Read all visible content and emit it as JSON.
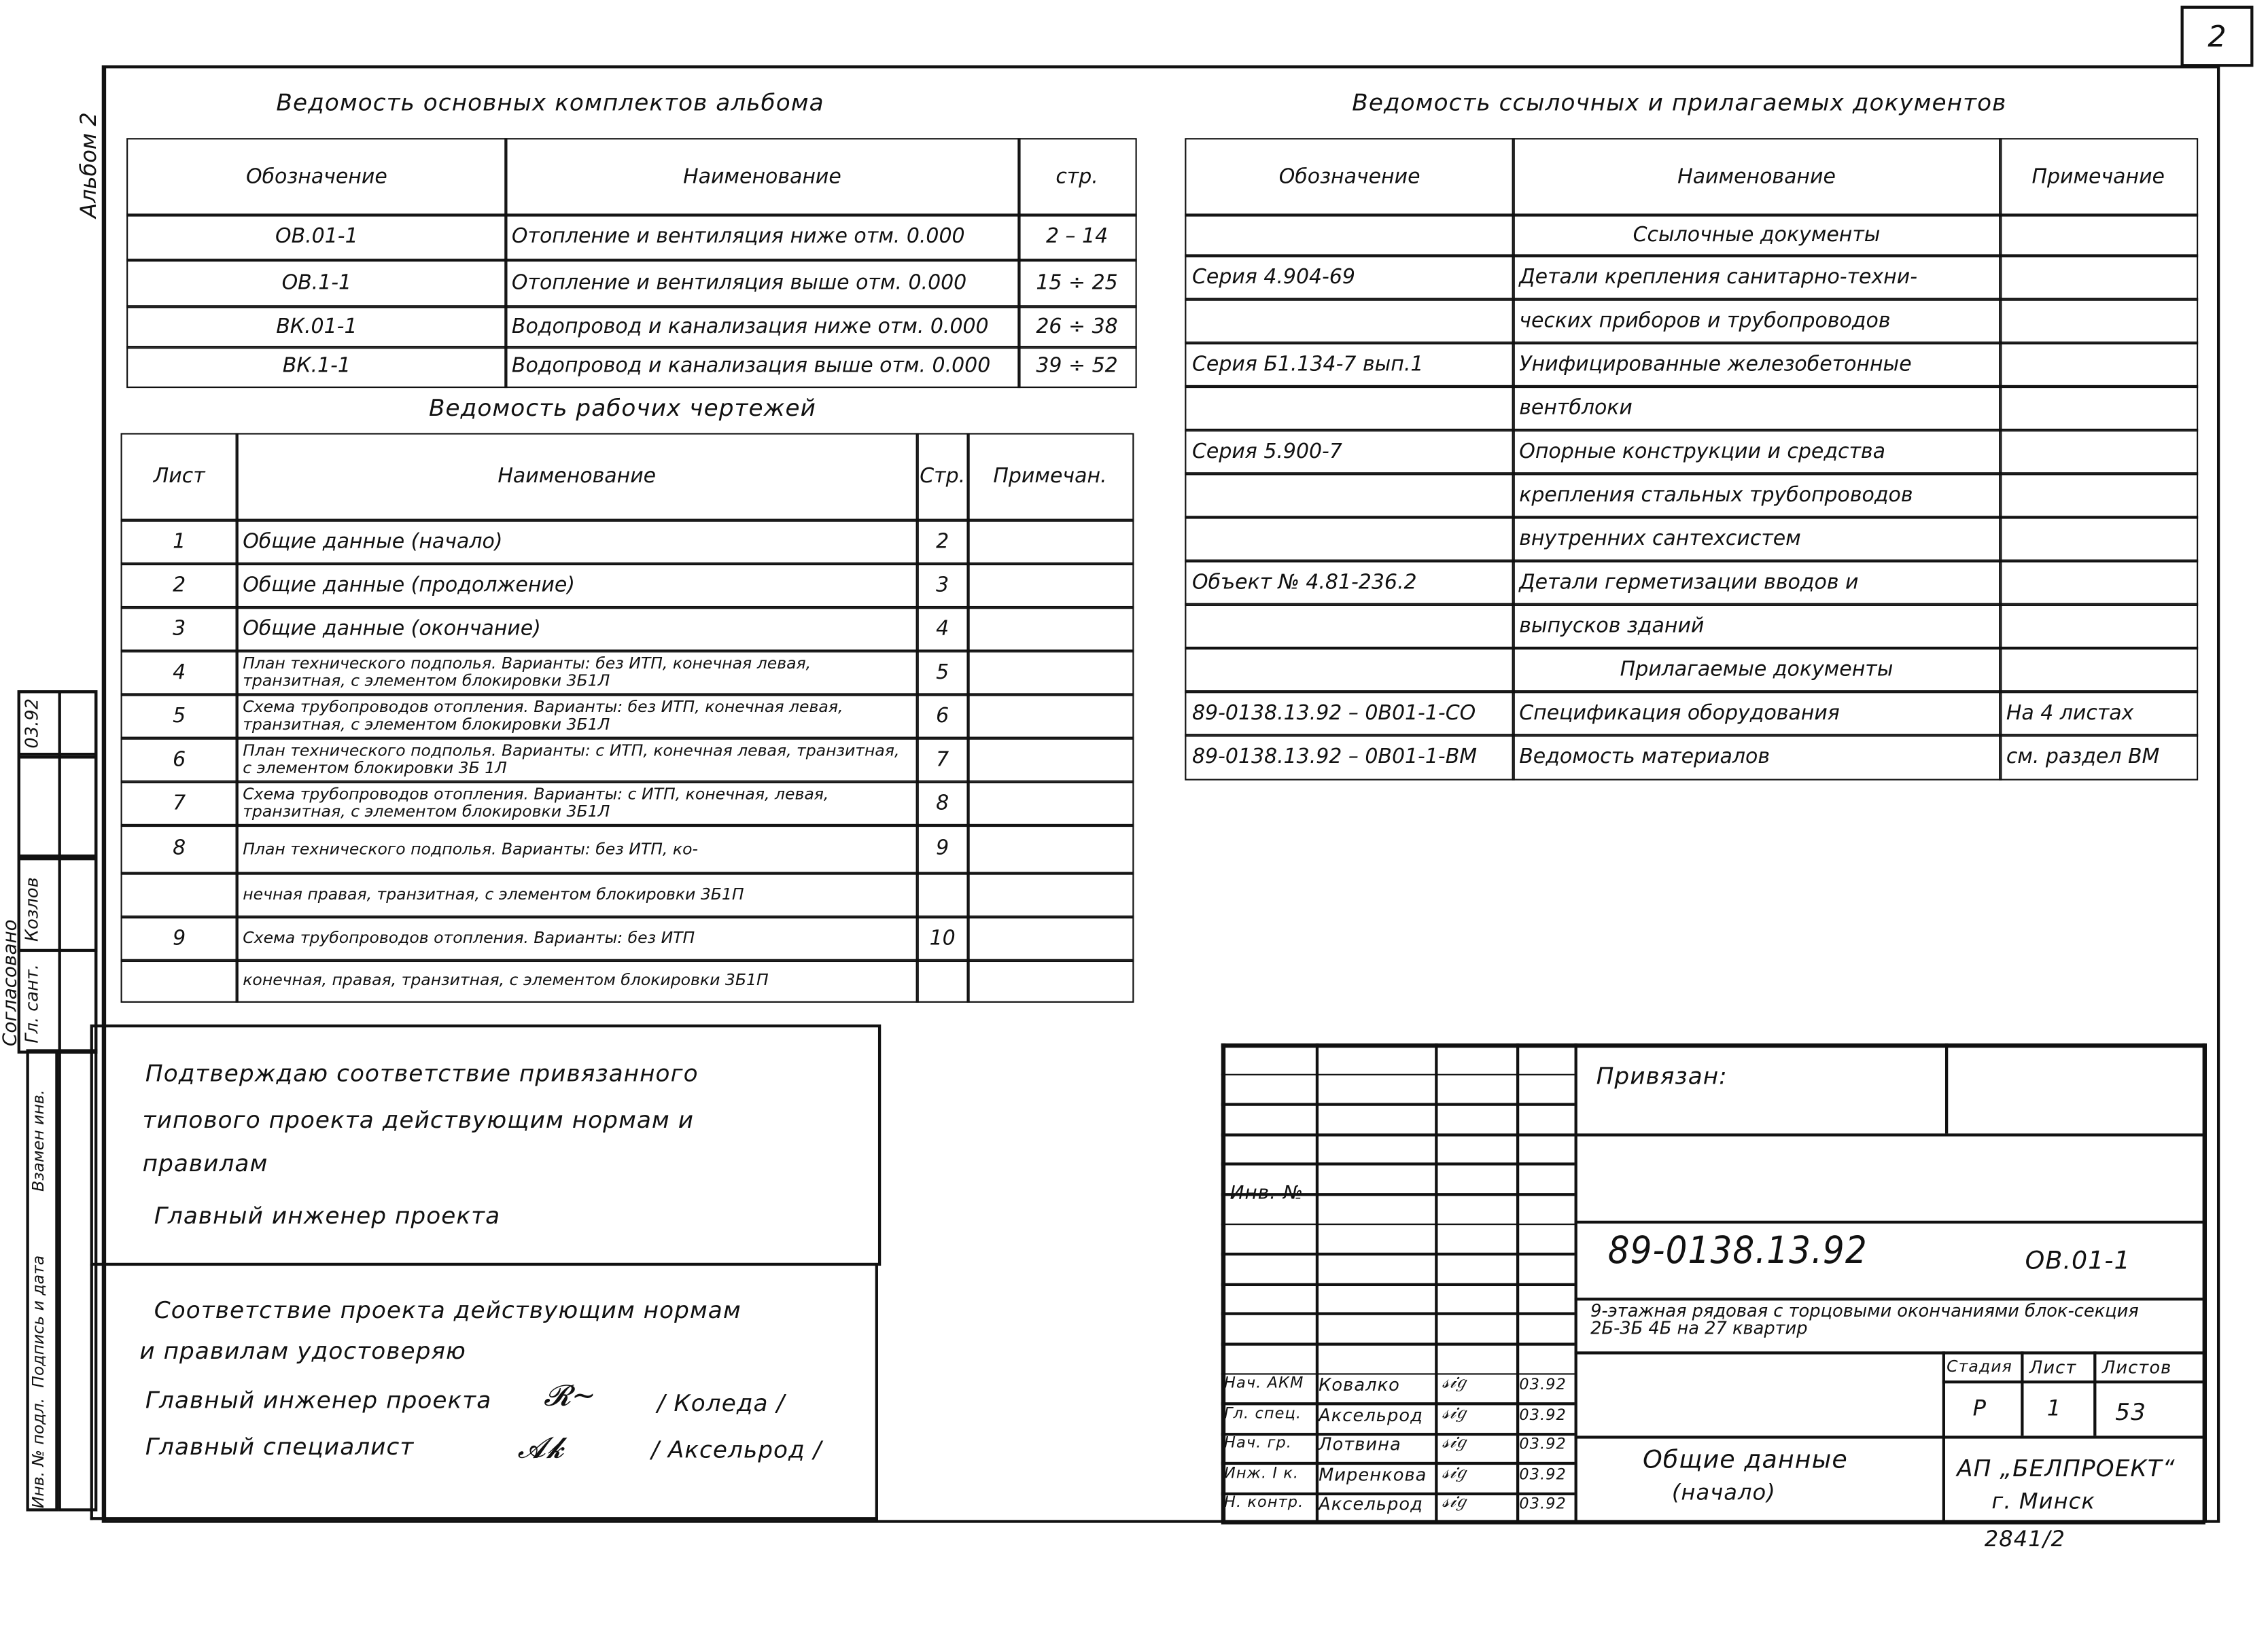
{
  "page_number": "2",
  "album_label": "Альбом 2",
  "album_sets": {
    "title": "Ведомость основных комплектов альбома",
    "headers": [
      "Обозначение",
      "Наименование",
      "стр."
    ],
    "rows": [
      [
        "ОВ.01-1",
        "Отопление и вентиляция ниже отм. 0.000",
        "2 – 14"
      ],
      [
        "ОВ.1-1",
        "Отопление и вентиляция выше отм. 0.000",
        "15 ÷ 25"
      ],
      [
        "ВК.01-1",
        "Водопровод и канализация ниже отм. 0.000",
        "26 ÷ 38"
      ],
      [
        "ВК.1-1",
        "Водопровод и канализация выше отм. 0.000",
        "39 ÷ 52"
      ]
    ]
  },
  "working_drawings": {
    "title": "Ведомость рабочих чертежей",
    "headers": [
      "Лист",
      "Наименование",
      "Стр.",
      "Примечан."
    ],
    "rows": [
      [
        "1",
        "Общие данные (начало)",
        "2",
        ""
      ],
      [
        "2",
        "Общие данные (продолжение)",
        "3",
        ""
      ],
      [
        "3",
        "Общие данные (окончание)",
        "4",
        ""
      ],
      [
        "4",
        "План технического подполья. Варианты: без ИТП, конечная левая, транзитная, с элементом блокировки 3Б1Л",
        "5",
        ""
      ],
      [
        "5",
        "Схема трубопроводов отопления. Варианты: без ИТП, конечная левая, транзитная, с элементом блокировки 3Б1Л",
        "6",
        ""
      ],
      [
        "6",
        "План технического подполья. Варианты: с ИТП, конечная левая, транзитная, с элементом блокировки 3Б 1Л",
        "7",
        ""
      ],
      [
        "7",
        "Схема трубопроводов отопления. Варианты: с ИТП, конечная, левая, транзитная, с элементом блокировки 3Б1Л",
        "8",
        ""
      ],
      [
        "8",
        "План технического подполья. Варианты: без ИТП, ко-",
        "9",
        ""
      ],
      [
        "",
        "нечная правая, транзитная, с элементом блокировки 3Б1П",
        "",
        ""
      ],
      [
        "9",
        "Схема трубопроводов отопления. Варианты: без ИТП",
        "10",
        ""
      ],
      [
        "",
        "конечная, правая, транзитная, с элементом блокировки 3Б1П",
        "",
        ""
      ]
    ]
  },
  "reference_docs": {
    "title": "Ведомость ссылочных и прилагаемых документов",
    "headers": [
      "Обозначение",
      "Наименование",
      "Примечание"
    ],
    "rows": [
      [
        "",
        "Ссылочные документы",
        ""
      ],
      [
        "Серия 4.904-69",
        "Детали крепления санитарно-техни-",
        ""
      ],
      [
        "",
        "ческих приборов и трубопроводов",
        ""
      ],
      [
        "Серия Б1.134-7 вып.1",
        "Унифицированные железобетонные",
        ""
      ],
      [
        "",
        "вентблоки",
        ""
      ],
      [
        "Серия 5.900-7",
        "Опорные конструкции и средства",
        ""
      ],
      [
        "",
        "крепления стальных трубопроводов",
        ""
      ],
      [
        "",
        "внутренних сантехсистем",
        ""
      ],
      [
        "Объект № 4.81-236.2",
        "Детали герметизации вводов и",
        ""
      ],
      [
        "",
        "выпусков зданий",
        ""
      ],
      [
        "",
        "Прилагаемые документы",
        ""
      ],
      [
        "89-0138.13.92 – 0В01-1-СО",
        "Спецификация оборудования",
        "На 4 листах"
      ],
      [
        "89-0138.13.92 – 0В01-1-ВМ",
        "Ведомость материалов",
        "см. раздел ВМ"
      ]
    ]
  },
  "confirm": {
    "line1": "Подтверждаю соответствие привязанного",
    "line2": "типового проекта действующим нормам и",
    "line3": "правилам",
    "role": "Главный инженер проекта"
  },
  "certify": {
    "line1": "Соответствие проекта действующим нормам",
    "line2": "и правилам удостоверяю",
    "gip_label": "Главный инженер проекта",
    "gip_name": "/ Коледа /",
    "spec_label": "Главный специалист",
    "spec_name": "/ Аксельрод /"
  },
  "left_stamp": {
    "agreed": "Согласовано",
    "role": "Гл. сант.",
    "name": "Козлов",
    "date": "03.92",
    "cols": [
      "Инв. № подл.",
      "Подпись и дата",
      "Взамен инв."
    ]
  },
  "title_block": {
    "inv_label": "Инв. №",
    "bound_label": "Привязан:",
    "doc_code": "89-0138.13.92",
    "set_code": "ОВ.01-1",
    "project": "9-этажная рядовая с торцовыми окончаниями блок-секция 2Б-3Б 4Б на 27 квартир",
    "sheet_name_1": "Общие данные",
    "sheet_name_2": "(начало)",
    "stage_label": "Стадия",
    "sheet_label": "Лист",
    "sheets_label": "Листов",
    "stage": "Р",
    "sheet": "1",
    "sheets": "53",
    "org_1": "АП „БЕЛПРОЕКТ“",
    "org_2": "г. Минск",
    "signers": [
      [
        "Нач. АКМ",
        "Ковалко",
        "03.92"
      ],
      [
        "Гл. спец.",
        "Аксельрод",
        "03.92"
      ],
      [
        "Нач. гр.",
        "Лотвина",
        "03.92"
      ],
      [
        "Инж. I к.",
        "Миренкова",
        "03.92"
      ],
      [
        "Н. контр.",
        "Аксельрод",
        "03.92"
      ]
    ],
    "archive_no": "2841/2"
  }
}
